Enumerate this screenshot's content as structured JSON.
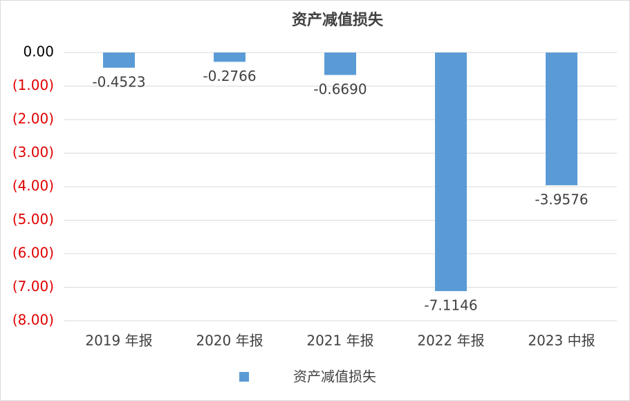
{
  "chart_data": {
    "type": "bar",
    "title": "资产减值损失",
    "categories": [
      "2019 年报",
      "2020 年报",
      "2021 年报",
      "2022 年报",
      "2023 中报"
    ],
    "series": [
      {
        "name": "资产减值损失",
        "color": "#5b9bd5",
        "values": [
          -0.4523,
          -0.2766,
          -0.669,
          -7.1146,
          -3.9576
        ],
        "value_labels": [
          "-0.4523",
          "-0.2766",
          "-0.6690",
          "-7.1146",
          "-3.9576"
        ]
      }
    ],
    "ylim": [
      -8,
      0
    ],
    "yticks": [
      {
        "value": 0,
        "label": "0.00"
      },
      {
        "value": -1,
        "label": "(1.00)"
      },
      {
        "value": -2,
        "label": "(2.00)"
      },
      {
        "value": -3,
        "label": "(3.00)"
      },
      {
        "value": -4,
        "label": "(4.00)"
      },
      {
        "value": -5,
        "label": "(5.00)"
      },
      {
        "value": -6,
        "label": "(6.00)"
      },
      {
        "value": -7,
        "label": "(7.00)"
      },
      {
        "value": -8,
        "label": "(8.00)"
      }
    ],
    "grid": true,
    "legend": "bottom"
  }
}
